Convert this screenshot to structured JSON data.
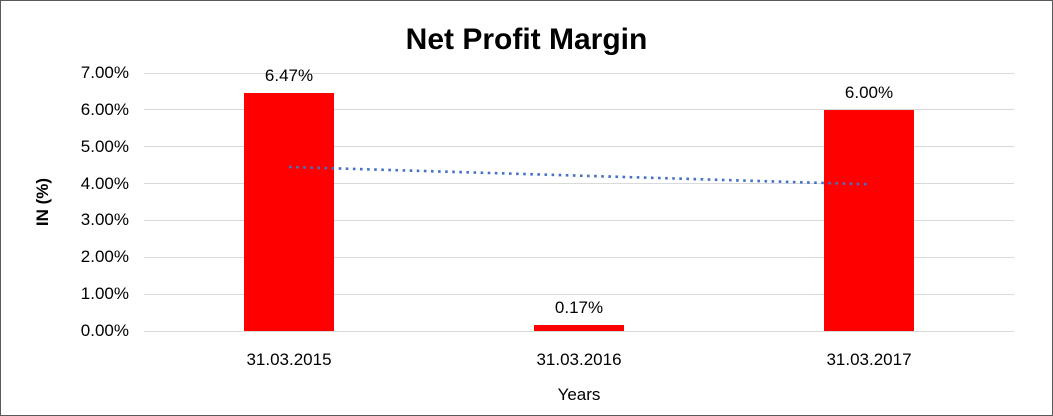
{
  "chart_data": {
    "type": "bar",
    "title": "Net Profit Margin",
    "categories": [
      "31.03.2015",
      "31.03.2016",
      "31.03.2017"
    ],
    "values": [
      6.47,
      0.17,
      6.0
    ],
    "data_labels": [
      "6.47%",
      "0.17%",
      "6.00%"
    ],
    "xlabel": "Years",
    "ylabel": "IN (%)",
    "ylim": [
      0,
      7
    ],
    "ytick_step": 1,
    "ytick_labels": [
      "0.00%",
      "1.00%",
      "2.00%",
      "3.00%",
      "4.00%",
      "5.00%",
      "6.00%",
      "7.00%"
    ],
    "grid": "horizontal",
    "legend": "none",
    "bar_color": "#ff0000",
    "gridline_color": "#d9d9d9",
    "text_color": "#000000",
    "trendline": {
      "type": "linear",
      "style": "dotted",
      "color": "#4472c4",
      "points": [
        {
          "category": "31.03.2015",
          "value": 4.45
        },
        {
          "category": "31.03.2017",
          "value": 3.98
        }
      ]
    }
  }
}
